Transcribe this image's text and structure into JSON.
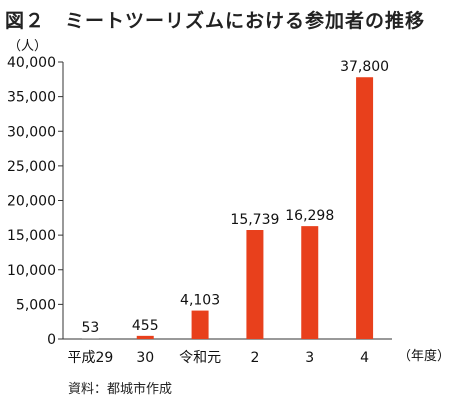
{
  "chart_data": {
    "type": "bar",
    "title": "図２　ミートツーリズムにおける参加者の推移",
    "ylabel": "（人）",
    "xlabel": "（年度）",
    "categories": [
      "平成29",
      "30",
      "令和元",
      "2",
      "3",
      "4"
    ],
    "values": [
      53,
      455,
      4103,
      15739,
      16298,
      37800
    ],
    "data_labels": [
      "53",
      "455",
      "4,103",
      "15,739",
      "16,298",
      "37,800"
    ],
    "ylim": [
      0,
      40000
    ],
    "yticks": [
      0,
      5000,
      10000,
      15000,
      20000,
      25000,
      30000,
      35000,
      40000
    ],
    "ytick_labels": [
      "0",
      "5,000",
      "10,000",
      "15,000",
      "20,000",
      "25,000",
      "30,000",
      "35,000",
      "40,000"
    ],
    "grid": false,
    "bar_color": "#e8401c",
    "source": "資料：都城市作成"
  }
}
